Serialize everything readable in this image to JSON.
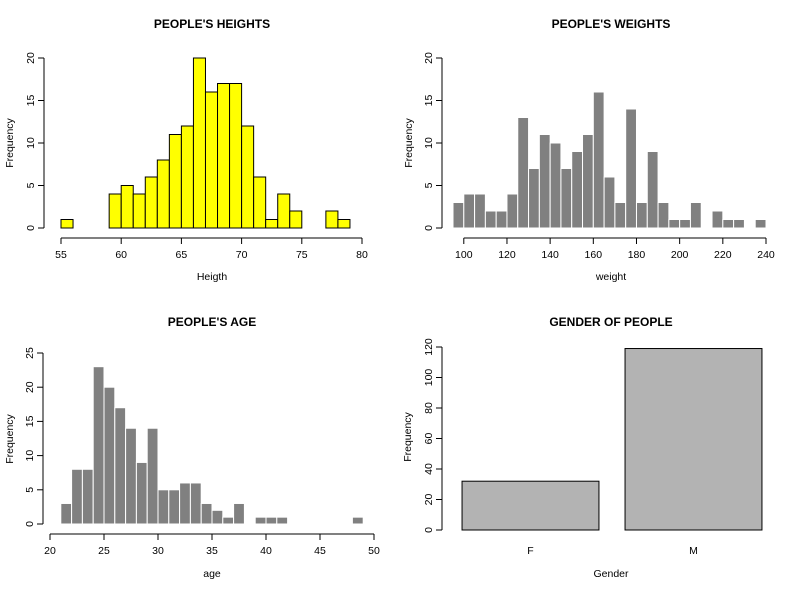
{
  "chart_data": [
    {
      "type": "histogram",
      "title": "PEOPLE'S HEIGHTS",
      "xlabel": "Heigth",
      "ylabel": "Frequency",
      "bar_color": "#ffff00",
      "bin_width": 1,
      "bins_start": [
        55,
        56,
        57,
        58,
        59,
        60,
        61,
        62,
        63,
        64,
        65,
        66,
        67,
        68,
        69,
        70,
        71,
        72,
        73,
        74,
        75,
        76,
        77,
        78
      ],
      "values": [
        1,
        0,
        0,
        0,
        4,
        5,
        4,
        6,
        8,
        11,
        12,
        20,
        16,
        17,
        17,
        12,
        6,
        1,
        4,
        2,
        0,
        0,
        2,
        1
      ],
      "xlim": [
        55,
        80
      ],
      "ylim": [
        0,
        20
      ],
      "xticks": [
        55,
        60,
        65,
        70,
        75,
        80
      ],
      "yticks": [
        0,
        5,
        10,
        15,
        20
      ]
    },
    {
      "type": "histogram",
      "title": "PEOPLE'S WEIGHTS",
      "xlabel": "weight",
      "ylabel": "Frequency",
      "bar_color": "#808080",
      "bin_width": 5,
      "bins_start": [
        95,
        100,
        105,
        110,
        115,
        120,
        125,
        130,
        135,
        140,
        145,
        150,
        155,
        160,
        165,
        170,
        175,
        180,
        185,
        190,
        195,
        200,
        205,
        210,
        215,
        220,
        225,
        230,
        235
      ],
      "values": [
        3,
        4,
        4,
        2,
        2,
        4,
        13,
        7,
        11,
        10,
        7,
        9,
        11,
        16,
        6,
        3,
        14,
        3,
        9,
        3,
        1,
        1,
        3,
        0,
        2,
        1,
        1,
        0,
        1
      ],
      "xlim": [
        95,
        240
      ],
      "ylim": [
        0,
        20
      ],
      "xticks": [
        100,
        120,
        140,
        160,
        180,
        200,
        220,
        240
      ],
      "yticks": [
        0,
        5,
        10,
        15,
        20
      ]
    },
    {
      "type": "histogram",
      "title": "PEOPLE'S AGE",
      "xlabel": "age",
      "ylabel": "Frequency",
      "bar_color": "#808080",
      "bin_width": 1,
      "bins_start": [
        21,
        22,
        23,
        24,
        25,
        26,
        27,
        28,
        29,
        30,
        31,
        32,
        33,
        34,
        35,
        36,
        37,
        38,
        39,
        40,
        41,
        42,
        43,
        44,
        45,
        46,
        47,
        48
      ],
      "values": [
        3,
        8,
        8,
        23,
        20,
        17,
        14,
        9,
        14,
        5,
        5,
        6,
        6,
        3,
        2,
        1,
        3,
        0,
        1,
        1,
        1,
        0,
        0,
        0,
        0,
        0,
        0,
        1
      ],
      "xlim": [
        20,
        50
      ],
      "ylim": [
        0,
        25
      ],
      "xticks": [
        20,
        25,
        30,
        35,
        40,
        45,
        50
      ],
      "yticks": [
        0,
        5,
        10,
        15,
        20,
        25
      ]
    },
    {
      "type": "bar",
      "title": "GENDER OF PEOPLE",
      "xlabel": "Gender",
      "ylabel": "Frequency",
      "bar_color": "#b3b3b3",
      "categories": [
        "F",
        "M"
      ],
      "values": [
        32,
        119
      ],
      "ylim": [
        0,
        120
      ],
      "yticks": [
        0,
        20,
        40,
        60,
        80,
        100,
        120
      ]
    }
  ]
}
